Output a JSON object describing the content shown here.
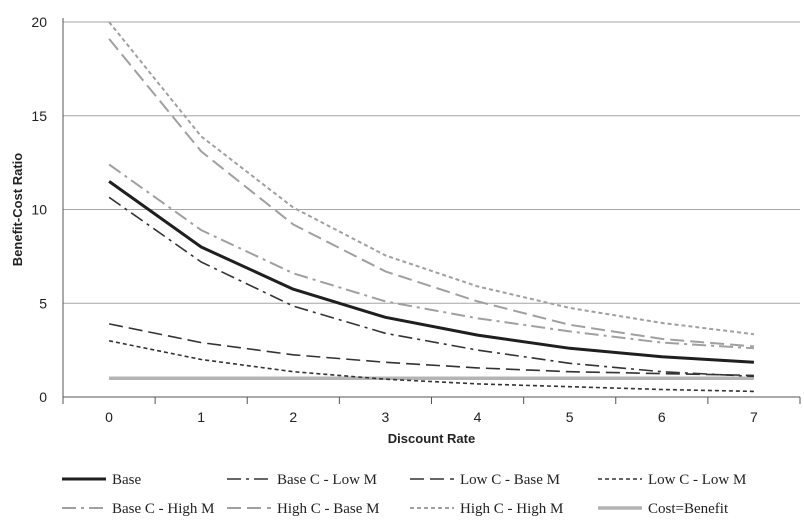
{
  "chart_data": {
    "type": "line",
    "title": "",
    "xlabel": "Discount Rate",
    "ylabel": "Benefit-Cost Ratio",
    "x": [
      0,
      1,
      2,
      3,
      4,
      5,
      6,
      7
    ],
    "xlim": [
      -0.5,
      7.5
    ],
    "ylim": [
      0,
      20
    ],
    "yticks": [
      0,
      5,
      10,
      15,
      20
    ],
    "grid": "horizontal",
    "legend_position": "bottom",
    "series": [
      {
        "name": "Base",
        "values": [
          11.5,
          8.0,
          5.75,
          4.25,
          3.3,
          2.6,
          2.15,
          1.85
        ],
        "color": "#1f1f1f",
        "dash": "solid",
        "width": 3
      },
      {
        "name": "Base C - Low M",
        "values": [
          10.65,
          7.2,
          4.85,
          3.4,
          2.5,
          1.8,
          1.35,
          1.1
        ],
        "color": "#333333",
        "dash": "dashdot",
        "width": 1.6
      },
      {
        "name": "Low C - Base M",
        "values": [
          3.9,
          2.9,
          2.25,
          1.85,
          1.55,
          1.35,
          1.25,
          1.15
        ],
        "color": "#333333",
        "dash": "longdash",
        "width": 1.6
      },
      {
        "name": "Low C - Low M",
        "values": [
          3.0,
          2.0,
          1.35,
          0.95,
          0.7,
          0.55,
          0.4,
          0.3
        ],
        "color": "#333333",
        "dash": "dash",
        "width": 1.6
      },
      {
        "name": "Base C - High M",
        "values": [
          12.4,
          8.9,
          6.6,
          5.1,
          4.2,
          3.5,
          2.9,
          2.6
        ],
        "color": "#a0a0a0",
        "dash": "dashdot",
        "width": 2
      },
      {
        "name": "High C - Base M",
        "values": [
          19.1,
          13.1,
          9.2,
          6.7,
          5.1,
          3.85,
          3.1,
          2.7
        ],
        "color": "#a0a0a0",
        "dash": "longdash",
        "width": 2
      },
      {
        "name": "High C - High M",
        "values": [
          20.0,
          13.9,
          10.1,
          7.55,
          5.9,
          4.75,
          3.95,
          3.35
        ],
        "color": "#a0a0a0",
        "dash": "dash",
        "width": 2
      },
      {
        "name": "Cost=Benefit",
        "values": [
          1,
          1,
          1,
          1,
          1,
          1,
          1,
          1
        ],
        "color": "#b4b4b4",
        "dash": "solid",
        "width": 3.5
      }
    ]
  }
}
